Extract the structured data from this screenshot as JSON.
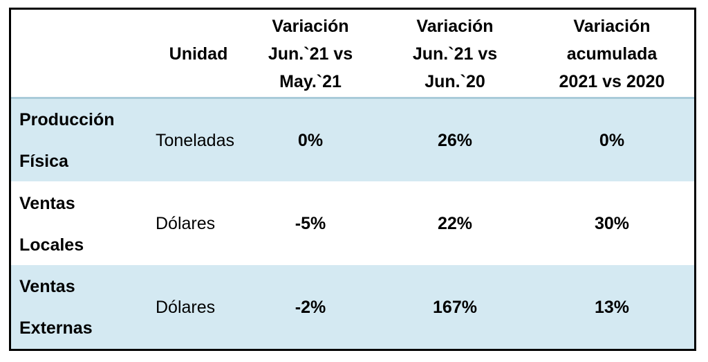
{
  "table": {
    "header": [
      "Unidad",
      "Variación\nJun.`21 vs\nMay.`21",
      "Variación\nJun.`21 vs\nJun.`20",
      "Variación\nacumulada\n2021 vs 2020"
    ],
    "rows": [
      [
        "Producción\nFísica",
        "Toneladas",
        "0%",
        "26%",
        "0%"
      ],
      [
        "Ventas\nLocales",
        "Dólares",
        "-5%",
        "22%",
        "30%"
      ],
      [
        "Ventas\nExternas",
        "Dólares",
        "-2%",
        "167%",
        "13%"
      ]
    ]
  }
}
